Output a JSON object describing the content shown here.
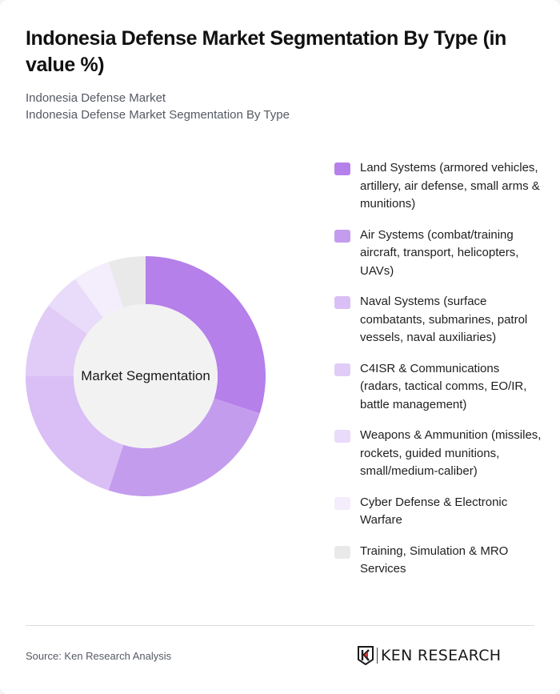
{
  "header": {
    "title": "Indonesia Defense Market Segmentation By Type (in value %)",
    "subtitle_1": "Indonesia Defense Market",
    "subtitle_2": "Indonesia Defense Market Segmentation By Type"
  },
  "chart": {
    "center_label": "Market Segmentation"
  },
  "legend": [
    {
      "label": "Land Systems (armored vehicles, artillery, air defense, small arms & munitions)",
      "color": "#B580EA"
    },
    {
      "label": "Air Systems (combat/training aircraft, transport, helicopters, UAVs)",
      "color": "#C49CEE"
    },
    {
      "label": "Naval Systems (surface combatants, submarines, patrol vessels, naval auxiliaries)",
      "color": "#D9BFF5"
    },
    {
      "label": "C4ISR & Communications (radars, tactical comms, EO/IR, battle management)",
      "color": "#E0CCF7"
    },
    {
      "label": "Weapons & Ammunition (missiles, rockets, guided munitions, small/medium-caliber)",
      "color": "#E9DBFA"
    },
    {
      "label": "Cyber Defense & Electronic Warfare",
      "color": "#F3EDFC"
    },
    {
      "label": "Training, Simulation & MRO Services",
      "color": "#E9E9E9"
    }
  ],
  "footer": {
    "source": "Source: Ken Research Analysis",
    "logo_text": "KEN RESEARCH"
  },
  "chart_data": {
    "type": "pie",
    "subtype": "donut",
    "title": "Indonesia Defense Market Segmentation By Type (in value %)",
    "center_label": "Market Segmentation",
    "categories": [
      "Land Systems (armored vehicles, artillery, air defense, small arms & munitions)",
      "Air Systems (combat/training aircraft, transport, helicopters, UAVs)",
      "Naval Systems (surface combatants, submarines, patrol vessels, naval auxiliaries)",
      "C4ISR & Communications (radars, tactical comms, EO/IR, battle management)",
      "Weapons & Ammunition (missiles, rockets, guided munitions, small/medium-caliber)",
      "Cyber Defense & Electronic Warfare",
      "Training, Simulation & MRO Services"
    ],
    "values": [
      30,
      25,
      20,
      10,
      5,
      5,
      5
    ],
    "colors": [
      "#B580EA",
      "#C49CEE",
      "#D9BFF5",
      "#E0CCF7",
      "#E9DBFA",
      "#F3EDFC",
      "#E9E9E9"
    ],
    "legend_position": "right",
    "unit": "%"
  }
}
